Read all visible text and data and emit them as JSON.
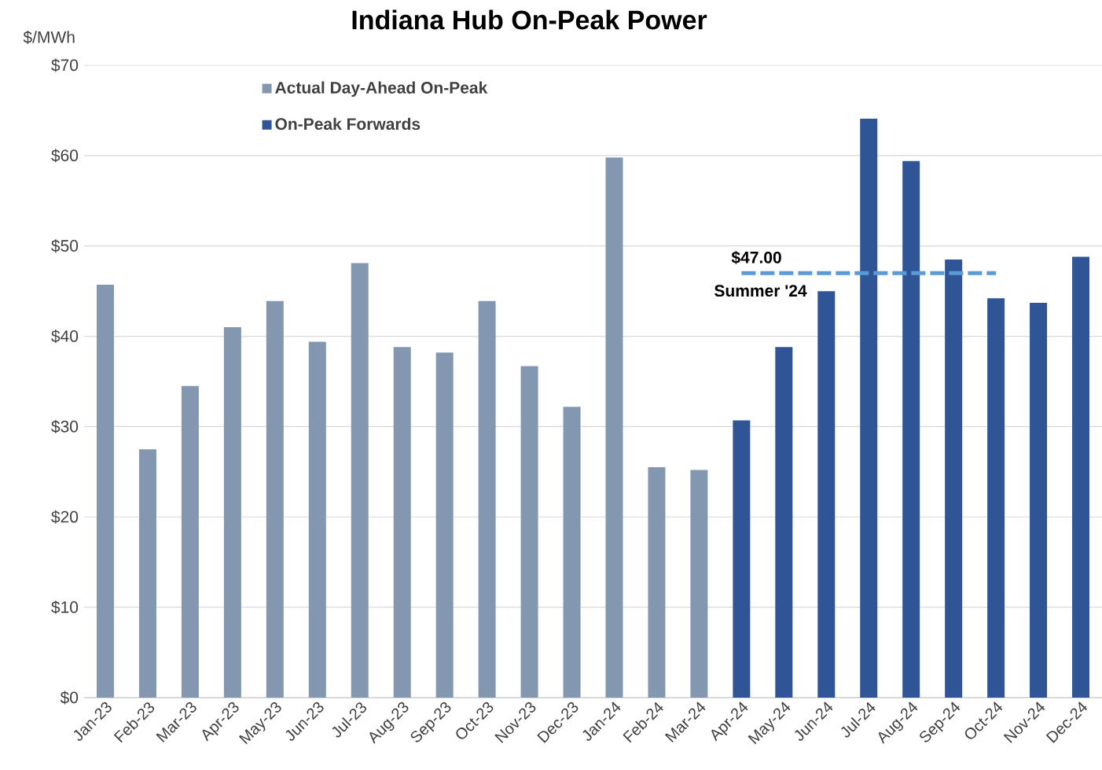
{
  "chart_data": {
    "type": "bar",
    "title": "Indiana Hub On-Peak Power",
    "ylabel": "$/MWh",
    "categories": [
      "Jan-23",
      "Feb-23",
      "Mar-23",
      "Apr-23",
      "May-23",
      "Jun-23",
      "Jul-23",
      "Aug-23",
      "Sep-23",
      "Oct-23",
      "Nov-23",
      "Dec-23",
      "Jan-24",
      "Feb-24",
      "Mar-24",
      "Apr-24",
      "May-24",
      "Jun-24",
      "Jul-24",
      "Aug-24",
      "Sep-24",
      "Oct-24",
      "Nov-24",
      "Dec-24"
    ],
    "series": [
      {
        "name": "Actual Day-Ahead On-Peak",
        "color": "#8497b0",
        "values": [
          45.7,
          27.5,
          34.5,
          41.0,
          43.9,
          39.4,
          48.1,
          38.8,
          38.2,
          43.9,
          36.7,
          32.2,
          59.8,
          25.5,
          25.2,
          null,
          null,
          null,
          null,
          null,
          null,
          null,
          null,
          null
        ]
      },
      {
        "name": "On-Peak Forwards",
        "color": "#2f5597",
        "values": [
          null,
          null,
          null,
          null,
          null,
          null,
          null,
          null,
          null,
          null,
          null,
          null,
          null,
          null,
          null,
          30.7,
          38.8,
          45.0,
          64.1,
          59.4,
          48.5,
          44.2,
          43.7,
          48.8
        ]
      },
      {
        "type": "line",
        "color": "#5b9bd5",
        "line_style": "dashed",
        "values": [
          null,
          null,
          null,
          null,
          null,
          null,
          null,
          null,
          null,
          null,
          null,
          null,
          null,
          null,
          null,
          47,
          47,
          47,
          47,
          47,
          47,
          47,
          null,
          null
        ]
      }
    ],
    "ylim": [
      0,
      70
    ],
    "yticks": [
      {
        "value": 0,
        "label": "$0"
      },
      {
        "value": 10,
        "label": "$10"
      },
      {
        "value": 20,
        "label": "$20"
      },
      {
        "value": 30,
        "label": "$30"
      },
      {
        "value": 40,
        "label": "$40"
      },
      {
        "value": 50,
        "label": "$50"
      },
      {
        "value": 60,
        "label": "$60"
      },
      {
        "value": 70,
        "label": "$70"
      }
    ],
    "grid": "y",
    "legend": "top left",
    "annotations": [
      {
        "text": "$47.00",
        "x": "Apr-24",
        "y": 47
      },
      {
        "text": "Summer '24",
        "x": "Apr-24",
        "y": 47
      }
    ]
  }
}
